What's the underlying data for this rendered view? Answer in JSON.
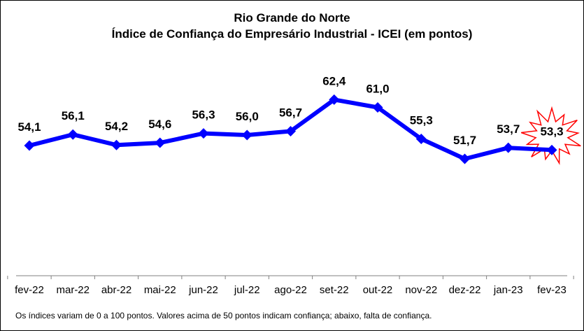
{
  "chart_data": {
    "type": "line",
    "title": "Rio Grande do Norte",
    "subtitle": "Índice de Confiança do Empresário Industrial - ICEI (em pontos)",
    "categories": [
      "fev-22",
      "mar-22",
      "abr-22",
      "mai-22",
      "jun-22",
      "jul-22",
      "ago-22",
      "set-22",
      "out-22",
      "nov-22",
      "dez-22",
      "jan-23",
      "fev-23"
    ],
    "value_labels": [
      "54,1",
      "56,1",
      "54,2",
      "54,6",
      "56,3",
      "56,0",
      "56,7",
      "62,4",
      "61,0",
      "55,3",
      "51,7",
      "53,7",
      "53,3"
    ],
    "series": [
      {
        "values": [
          54.1,
          56.1,
          54.2,
          54.6,
          56.3,
          56.0,
          56.7,
          62.4,
          61.0,
          55.3,
          51.7,
          53.7,
          53.3
        ]
      }
    ],
    "ylim": [
      30,
      70
    ],
    "grid": false,
    "highlight": "fev-23",
    "colors": {
      "line": "#0000ff",
      "highlight_burst": "#ff0000"
    },
    "note": "Os índices variam de 0 a 100 pontos. Valores acima de 50 pontos indicam confiança; abaixo, falta de confiança."
  }
}
